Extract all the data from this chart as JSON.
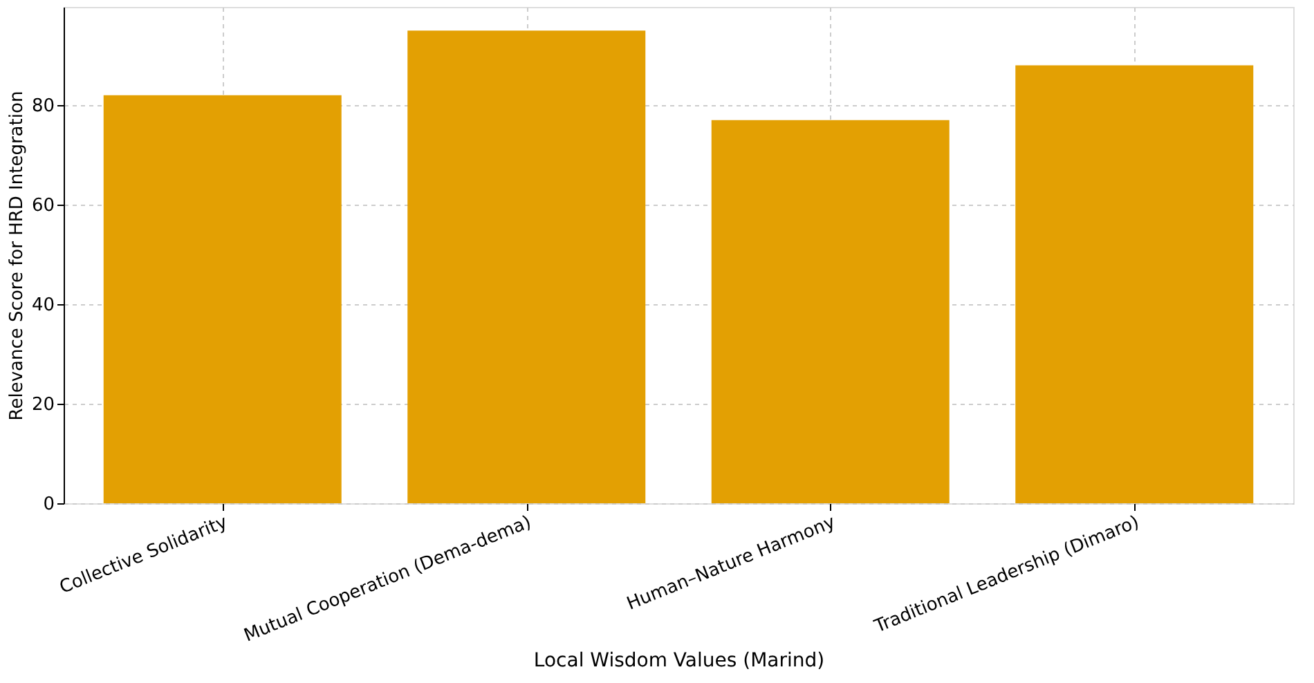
{
  "chart_data": {
    "type": "bar",
    "xlabel": "Local Wisdom Values (Marind)",
    "ylabel": "Relevance Score for HRD Integration",
    "categories": [
      "Collective Solidarity",
      "Mutual Cooperation (Dema-dema)",
      "Human–Nature Harmony",
      "Traditional Leadership (Dimaro)"
    ],
    "values": [
      82,
      95,
      77,
      88
    ],
    "color": "#e3a003",
    "ylim": [
      0,
      99.75
    ],
    "yticks": [
      0,
      20,
      40,
      60,
      80
    ],
    "grid": true
  }
}
